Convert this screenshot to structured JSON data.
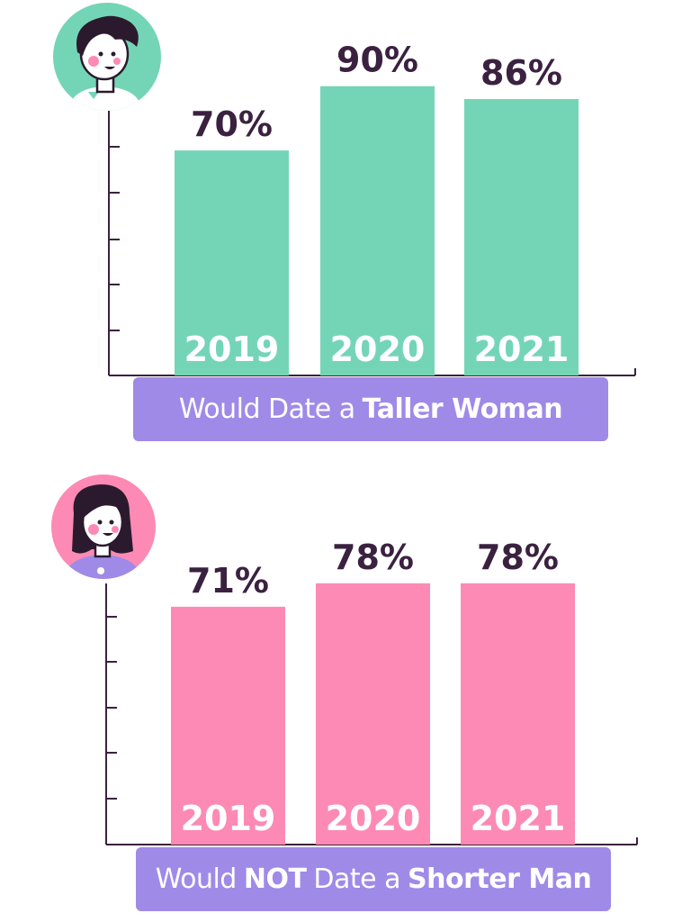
{
  "chart_data": [
    {
      "type": "bar",
      "categories": [
        "2019",
        "2020",
        "2021"
      ],
      "values": [
        70,
        90,
        86
      ],
      "value_labels": [
        "70%",
        "90%",
        "86%"
      ],
      "caption_parts": [
        {
          "text": "Would Date a",
          "bold": false
        },
        {
          "text": "Taller Woman",
          "bold": true
        }
      ],
      "ylim": [
        0,
        100
      ],
      "bar_color": "#74d5b6",
      "avatar_bg": "#74d5b6",
      "avatar_icon": "man-avatar-icon"
    },
    {
      "type": "bar",
      "categories": [
        "2019",
        "2020",
        "2021"
      ],
      "values": [
        71,
        78,
        78
      ],
      "value_labels": [
        "71%",
        "78%",
        "78%"
      ],
      "caption_parts": [
        {
          "text": "Would",
          "bold": false
        },
        {
          "text": "NOT",
          "bold": true
        },
        {
          "text": "Date a",
          "bold": false
        },
        {
          "text": "Shorter Man",
          "bold": true
        }
      ],
      "ylim": [
        0,
        100
      ],
      "bar_color": "#fc8ab4",
      "avatar_bg": "#fc8ab4",
      "avatar_icon": "woman-avatar-icon"
    }
  ],
  "colors": {
    "axis": "#3b2140",
    "label_text": "#3b2140",
    "year_text": "#ffffff",
    "caption_bg": "#9f8ae8",
    "caption_text": "#ffffff"
  }
}
